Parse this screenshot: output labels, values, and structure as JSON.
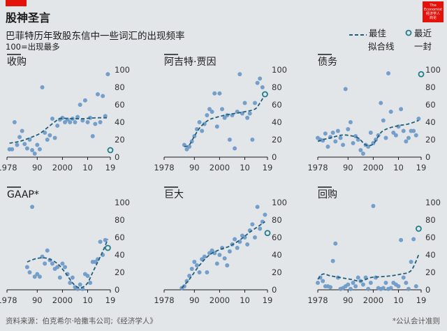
{
  "header": {
    "title": "股神圣言",
    "subtitle": "巴菲特历年致股东信中一些词汇的出现频率",
    "scale_note": "100=出现最多",
    "logo_lines": [
      "The",
      "Economist",
      "经济学人",
      "商论"
    ]
  },
  "legend": {
    "trend_label_lines": [
      "最佳",
      "拟合线"
    ],
    "latest_label_lines": [
      "最近",
      "一封"
    ]
  },
  "footer": {
    "source": "资料来源：伯克希尔·哈撒韦公司;《经济学人》",
    "footnote": "*公认会计准则"
  },
  "colors": {
    "background": "#e3e6e8",
    "dot": "#6f9bc9",
    "trend": "#1f5f7a",
    "latest_ring": "#1f7c8a",
    "axis_text": "#333333",
    "accent": "#e3120b"
  },
  "chart_data": [
    {
      "type": "scatter",
      "title": "收购",
      "x_ticks": [
        "1978",
        "90",
        "2000",
        "10",
        "19"
      ],
      "y_ticks": [
        "100",
        "80",
        "60",
        "40",
        "20",
        "0"
      ],
      "xlim": [
        1978,
        2019
      ],
      "ylim": [
        0,
        100
      ],
      "points": [
        [
          1979,
          9
        ],
        [
          1980,
          9
        ],
        [
          1981,
          40
        ],
        [
          1982,
          14
        ],
        [
          1983,
          23
        ],
        [
          1984,
          30
        ],
        [
          1985,
          15
        ],
        [
          1986,
          10
        ],
        [
          1987,
          20
        ],
        [
          1988,
          8
        ],
        [
          1989,
          4
        ],
        [
          1990,
          14
        ],
        [
          1991,
          9
        ],
        [
          1992,
          80
        ],
        [
          1993,
          28
        ],
        [
          1994,
          20
        ],
        [
          1995,
          25
        ],
        [
          1996,
          44
        ],
        [
          1997,
          22
        ],
        [
          1998,
          36
        ],
        [
          1999,
          43
        ],
        [
          2000,
          45
        ],
        [
          2001,
          40
        ],
        [
          2002,
          43
        ],
        [
          2003,
          40
        ],
        [
          2004,
          44
        ],
        [
          2005,
          40
        ],
        [
          2006,
          46
        ],
        [
          2007,
          60
        ],
        [
          2008,
          42
        ],
        [
          2009,
          65
        ],
        [
          2010,
          40
        ],
        [
          2011,
          45
        ],
        [
          2012,
          24
        ],
        [
          2013,
          38
        ],
        [
          2014,
          72
        ],
        [
          2015,
          40
        ],
        [
          2016,
          70
        ],
        [
          2017,
          47
        ],
        [
          2018,
          95
        ]
      ],
      "latest": [
        2019,
        8
      ],
      "trend": [
        [
          1979,
          16
        ],
        [
          1983,
          18
        ],
        [
          1987,
          22
        ],
        [
          1991,
          27
        ],
        [
          1995,
          36
        ],
        [
          1999,
          44
        ],
        [
          2003,
          44
        ],
        [
          2008,
          44
        ],
        [
          2013,
          45
        ],
        [
          2018,
          45
        ]
      ]
    },
    {
      "type": "scatter",
      "title": "阿吉特·贾因",
      "x_ticks": [
        "1978",
        "90",
        "2000",
        "10",
        "19"
      ],
      "y_ticks": [
        "100",
        "80",
        "60",
        "40",
        "20",
        "0"
      ],
      "xlim": [
        1978,
        2019
      ],
      "ylim": [
        0,
        100
      ],
      "points": [
        [
          1986,
          14
        ],
        [
          1987,
          9
        ],
        [
          1988,
          12
        ],
        [
          1989,
          18
        ],
        [
          1990,
          24
        ],
        [
          1991,
          32
        ],
        [
          1992,
          40
        ],
        [
          1993,
          30
        ],
        [
          1994,
          38
        ],
        [
          1995,
          48
        ],
        [
          1996,
          55
        ],
        [
          1997,
          52
        ],
        [
          1998,
          73
        ],
        [
          1999,
          35
        ],
        [
          2000,
          73
        ],
        [
          2001,
          55
        ],
        [
          2002,
          45
        ],
        [
          2003,
          48
        ],
        [
          2004,
          20
        ],
        [
          2005,
          48
        ],
        [
          2006,
          10
        ],
        [
          2007,
          52
        ],
        [
          2008,
          95
        ],
        [
          2009,
          50
        ],
        [
          2010,
          62
        ],
        [
          2011,
          45
        ],
        [
          2012,
          50
        ],
        [
          2013,
          20
        ],
        [
          2014,
          62
        ],
        [
          2015,
          85
        ],
        [
          2016,
          90
        ],
        [
          2017,
          80
        ]
      ],
      "latest": [
        2018,
        72
      ],
      "trend": [
        [
          1986,
          12
        ],
        [
          1988,
          14
        ],
        [
          1990,
          24
        ],
        [
          1992,
          33
        ],
        [
          1994,
          39
        ],
        [
          1996,
          43
        ],
        [
          1998,
          45
        ],
        [
          2002,
          48
        ],
        [
          2006,
          50
        ],
        [
          2010,
          52
        ],
        [
          2014,
          55
        ],
        [
          2016,
          62
        ],
        [
          2018,
          72
        ]
      ]
    },
    {
      "type": "scatter",
      "title": "债务",
      "x_ticks": [
        "1978",
        "90",
        "2000",
        "10",
        "19"
      ],
      "y_ticks": [
        "100",
        "80",
        "60",
        "40",
        "20",
        "0"
      ],
      "xlim": [
        1978,
        2019
      ],
      "ylim": [
        0,
        100
      ],
      "points": [
        [
          1978,
          22
        ],
        [
          1979,
          20
        ],
        [
          1980,
          19
        ],
        [
          1981,
          27
        ],
        [
          1982,
          12
        ],
        [
          1983,
          23
        ],
        [
          1984,
          28
        ],
        [
          1985,
          18
        ],
        [
          1986,
          30
        ],
        [
          1987,
          22
        ],
        [
          1988,
          14
        ],
        [
          1989,
          78
        ],
        [
          1990,
          32
        ],
        [
          1991,
          40
        ],
        [
          1992,
          16
        ],
        [
          1993,
          24
        ],
        [
          1994,
          20
        ],
        [
          1995,
          8
        ],
        [
          1996,
          4
        ],
        [
          1997,
          14
        ],
        [
          1998,
          12
        ],
        [
          1999,
          28
        ],
        [
          2000,
          16
        ],
        [
          2001,
          20
        ],
        [
          2002,
          25
        ],
        [
          2003,
          62
        ],
        [
          2004,
          42
        ],
        [
          2005,
          22
        ],
        [
          2006,
          96
        ],
        [
          2007,
          52
        ],
        [
          2008,
          28
        ],
        [
          2009,
          25
        ],
        [
          2010,
          35
        ],
        [
          2011,
          55
        ],
        [
          2012,
          30
        ],
        [
          2013,
          18
        ],
        [
          2014,
          22
        ],
        [
          2015,
          30
        ],
        [
          2016,
          30
        ],
        [
          2017,
          25
        ],
        [
          2018,
          44
        ]
      ],
      "latest": [
        2019,
        95
      ],
      "trend": [
        [
          1978,
          18
        ],
        [
          1980,
          20
        ],
        [
          1983,
          22
        ],
        [
          1987,
          25
        ],
        [
          1990,
          25
        ],
        [
          1994,
          22
        ],
        [
          1997,
          14
        ],
        [
          2000,
          15
        ],
        [
          2003,
          28
        ],
        [
          2006,
          33
        ],
        [
          2010,
          36
        ],
        [
          2014,
          38
        ],
        [
          2018,
          42
        ]
      ]
    },
    {
      "type": "scatter",
      "title": "GAAP*",
      "x_ticks": [
        "1978",
        "90",
        "2000",
        "10",
        "19"
      ],
      "y_ticks": [
        "100",
        "80",
        "60",
        "40",
        "20",
        "0"
      ],
      "xlim": [
        1978,
        2019
      ],
      "ylim": [
        0,
        100
      ],
      "points": [
        [
          1986,
          26
        ],
        [
          1987,
          20
        ],
        [
          1988,
          95
        ],
        [
          1989,
          15
        ],
        [
          1990,
          18
        ],
        [
          1991,
          15
        ],
        [
          1992,
          38
        ],
        [
          1993,
          30
        ],
        [
          1994,
          45
        ],
        [
          1995,
          34
        ],
        [
          1996,
          30
        ],
        [
          1997,
          24
        ],
        [
          1998,
          26
        ],
        [
          1999,
          14
        ],
        [
          2000,
          30
        ],
        [
          2001,
          26
        ],
        [
          2002,
          18
        ],
        [
          2003,
          8
        ],
        [
          2004,
          14
        ],
        [
          2005,
          3
        ],
        [
          2006,
          1
        ],
        [
          2007,
          6
        ],
        [
          2008,
          1
        ],
        [
          2009,
          18
        ],
        [
          2010,
          16
        ],
        [
          2011,
          8
        ],
        [
          2012,
          32
        ],
        [
          2013,
          32
        ],
        [
          2014,
          35
        ],
        [
          2015,
          55
        ],
        [
          2016,
          40
        ],
        [
          2017,
          57
        ]
      ],
      "latest": [
        2018,
        48
      ],
      "trend": [
        [
          1986,
          32
        ],
        [
          1990,
          36
        ],
        [
          1994,
          36
        ],
        [
          1998,
          30
        ],
        [
          2001,
          20
        ],
        [
          2004,
          8
        ],
        [
          2006,
          3
        ],
        [
          2008,
          3
        ],
        [
          2010,
          8
        ],
        [
          2012,
          20
        ],
        [
          2014,
          32
        ],
        [
          2016,
          44
        ],
        [
          2018,
          58
        ]
      ]
    },
    {
      "type": "scatter",
      "title": "巨大",
      "x_ticks": [
        "1978",
        "90",
        "2000",
        "10",
        "19"
      ],
      "y_ticks": [
        "100",
        "80",
        "60",
        "40",
        "20",
        "0"
      ],
      "xlim": [
        1978,
        2019
      ],
      "ylim": [
        0,
        100
      ],
      "points": [
        [
          1985,
          2
        ],
        [
          1986,
          4
        ],
        [
          1987,
          10
        ],
        [
          1988,
          16
        ],
        [
          1989,
          24
        ],
        [
          1990,
          32
        ],
        [
          1991,
          28
        ],
        [
          1992,
          20
        ],
        [
          1993,
          35
        ],
        [
          1994,
          38
        ],
        [
          1995,
          20
        ],
        [
          1996,
          42
        ],
        [
          1997,
          45
        ],
        [
          1998,
          42
        ],
        [
          1999,
          30
        ],
        [
          2000,
          40
        ],
        [
          2001,
          48
        ],
        [
          2002,
          36
        ],
        [
          2003,
          28
        ],
        [
          2004,
          44
        ],
        [
          2005,
          52
        ],
        [
          2006,
          58
        ],
        [
          2007,
          48
        ],
        [
          2008,
          55
        ],
        [
          2009,
          62
        ],
        [
          2010,
          60
        ],
        [
          2011,
          52
        ],
        [
          2012,
          68
        ],
        [
          2013,
          75
        ],
        [
          2014,
          60
        ],
        [
          2015,
          95
        ],
        [
          2016,
          70
        ],
        [
          2017,
          78
        ],
        [
          2018,
          86
        ]
      ],
      "latest": [
        2019,
        65
      ],
      "trend": [
        [
          1985,
          2
        ],
        [
          1988,
          12
        ],
        [
          1992,
          28
        ],
        [
          1996,
          40
        ],
        [
          2000,
          46
        ],
        [
          2004,
          50
        ],
        [
          2008,
          57
        ],
        [
          2012,
          66
        ],
        [
          2016,
          74
        ],
        [
          2018,
          78
        ]
      ]
    },
    {
      "type": "scatter",
      "title": "回购",
      "x_ticks": [
        "1978",
        "90",
        "2000",
        "10",
        "19"
      ],
      "y_ticks": [
        "100",
        "80",
        "60",
        "40",
        "20",
        "0"
      ],
      "xlim": [
        1978,
        2019
      ],
      "ylim": [
        0,
        100
      ],
      "points": [
        [
          1978,
          8
        ],
        [
          1979,
          14
        ],
        [
          1980,
          10
        ],
        [
          1981,
          4
        ],
        [
          1982,
          4
        ],
        [
          1983,
          3
        ],
        [
          1984,
          33
        ],
        [
          1985,
          53
        ],
        [
          1986,
          14
        ],
        [
          1987,
          1
        ],
        [
          1988,
          2
        ],
        [
          1989,
          4
        ],
        [
          1990,
          6
        ],
        [
          1991,
          1
        ],
        [
          1992,
          8
        ],
        [
          1993,
          4
        ],
        [
          1994,
          14
        ],
        [
          1995,
          10
        ],
        [
          1996,
          6
        ],
        [
          1997,
          14
        ],
        [
          1998,
          1
        ],
        [
          1999,
          8
        ],
        [
          2000,
          96
        ],
        [
          2001,
          14
        ],
        [
          2002,
          2
        ],
        [
          2003,
          1
        ],
        [
          2004,
          2
        ],
        [
          2005,
          8
        ],
        [
          2006,
          1
        ],
        [
          2007,
          2
        ],
        [
          2008,
          8
        ],
        [
          2009,
          6
        ],
        [
          2010,
          4
        ],
        [
          2011,
          57
        ],
        [
          2012,
          14
        ],
        [
          2013,
          8
        ],
        [
          2014,
          1
        ],
        [
          2015,
          32
        ],
        [
          2016,
          58
        ],
        [
          2017,
          4
        ]
      ],
      "latest": [
        2018,
        70
      ],
      "trend": [
        [
          1978,
          12
        ],
        [
          1980,
          18
        ],
        [
          1983,
          16
        ],
        [
          1987,
          14
        ],
        [
          1991,
          12
        ],
        [
          1995,
          10
        ],
        [
          1999,
          14
        ],
        [
          2003,
          15
        ],
        [
          2007,
          16
        ],
        [
          2011,
          18
        ],
        [
          2015,
          22
        ],
        [
          2018,
          40
        ]
      ]
    }
  ]
}
